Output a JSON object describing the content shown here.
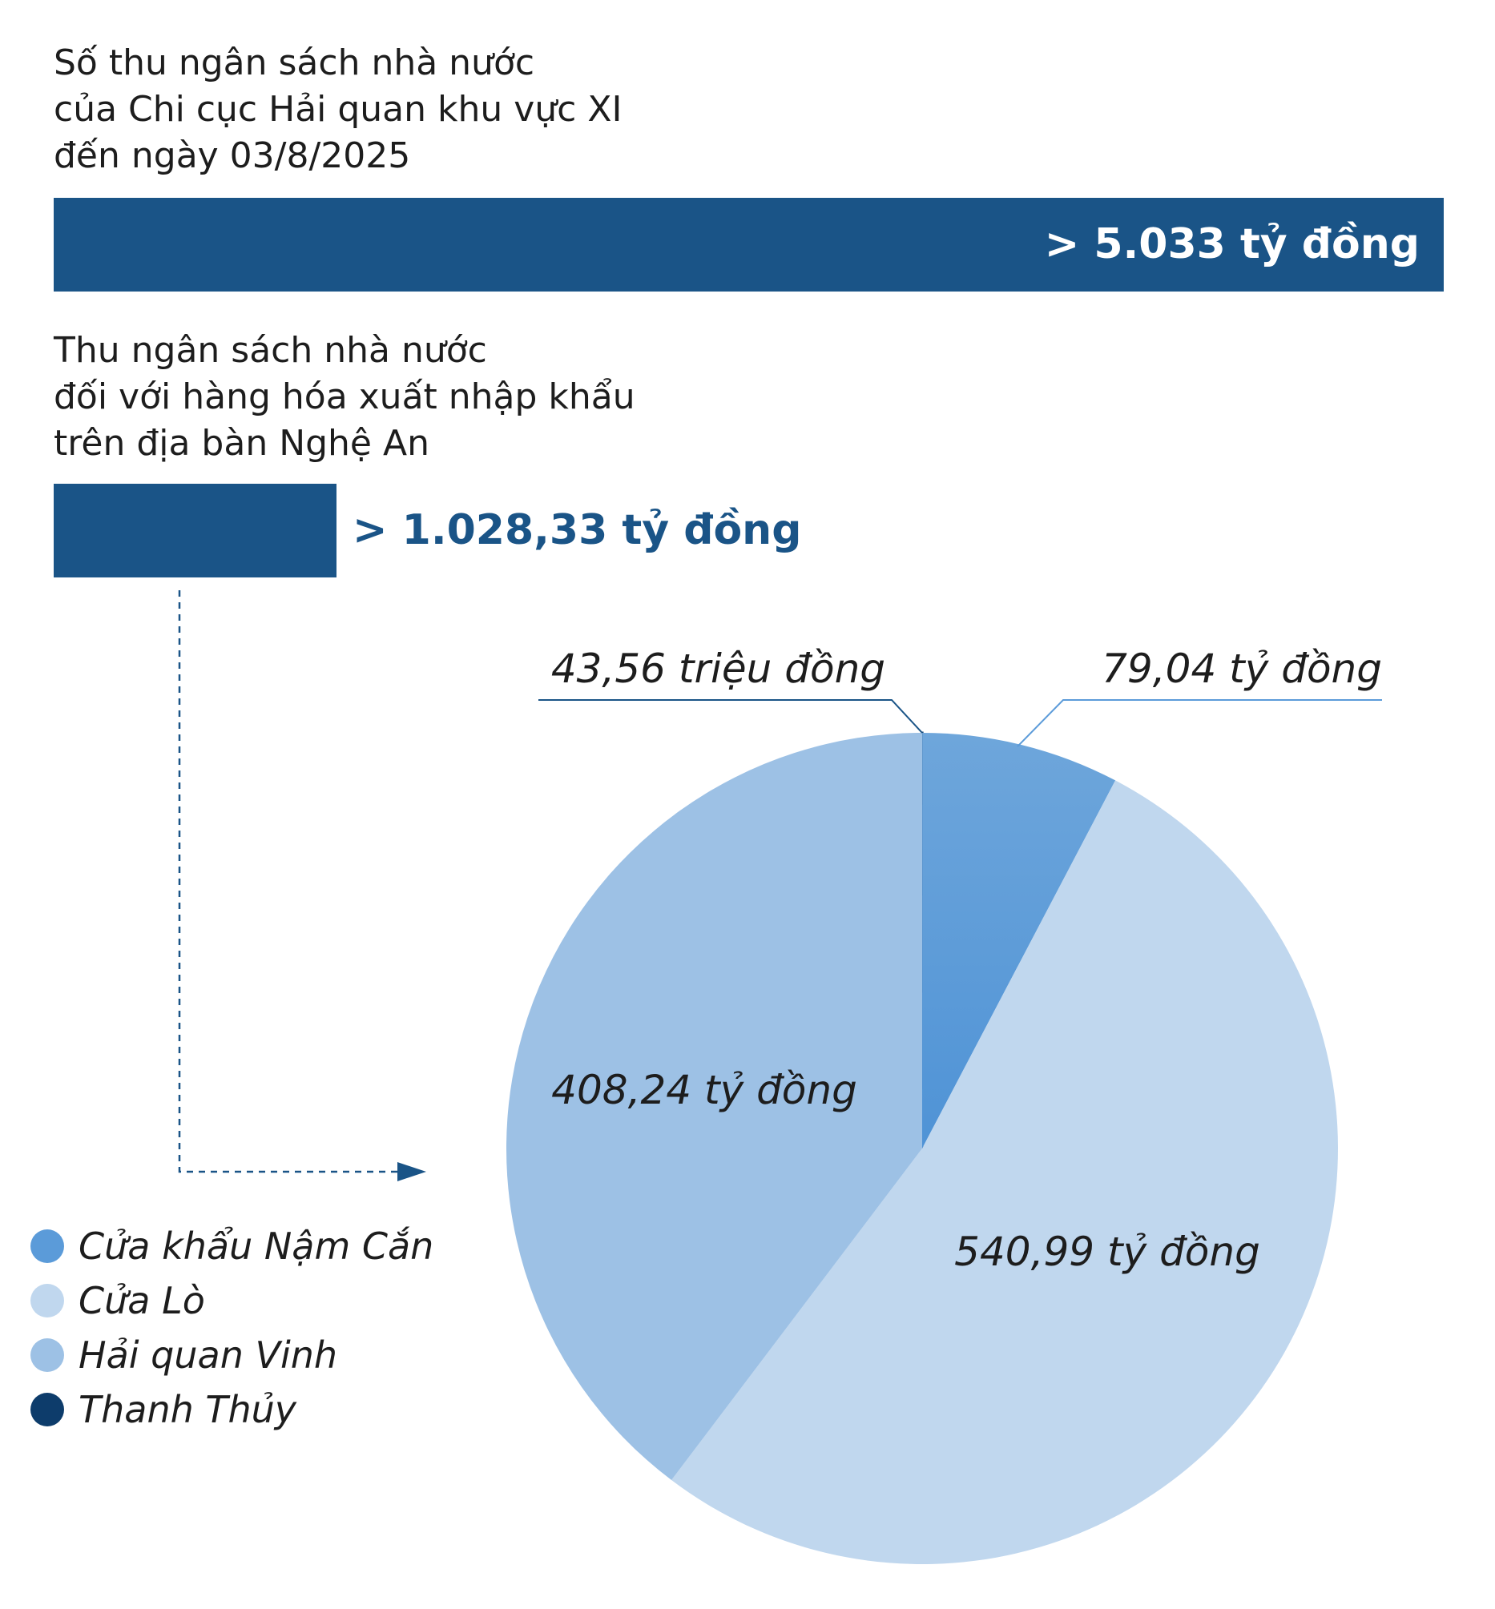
{
  "headings": {
    "total": [
      "Số thu ngân sách nhà nước",
      "của Chi cục Hải quan khu vực XI",
      "đến ngày 03/8/2025"
    ],
    "nghe_an": [
      "Thu ngân sách nhà nước",
      "đối với hàng hóa xuất nhập khẩu",
      "trên địa bàn Nghệ An"
    ]
  },
  "bars": {
    "total_label": "> 5.033 tỷ đồng",
    "nghe_an_label": "> 1.028,33 tỷ đồng",
    "color": "#1a5487"
  },
  "chart_data": {
    "type": "pie",
    "unit": "tỷ đồng",
    "slices": [
      {
        "name": "Thanh Thủy",
        "value": 0.04356,
        "label": "43,56 triệu đồng",
        "color": "#0d3c6b"
      },
      {
        "name": "Cửa khẩu Nậm Cắn",
        "value": 79.04,
        "label": "79,04 tỷ đồng",
        "color": "#5b9bd9"
      },
      {
        "name": "Cửa Lò",
        "value": 540.99,
        "label": "540,99 tỷ đồng",
        "color": "#c0d7ee"
      },
      {
        "name": "Hải quan Vinh",
        "value": 408.24,
        "label": "408,24 tỷ đồng",
        "color": "#9dc1e5"
      }
    ],
    "legend": [
      {
        "name": "Cửa khẩu Nậm Cắn",
        "color": "#5b9bd9"
      },
      {
        "name": "Cửa Lò",
        "color": "#c0d7ee"
      },
      {
        "name": "Hải quan Vinh",
        "color": "#9dc1e5"
      },
      {
        "name": "Thanh Thủy",
        "color": "#0d3c6b"
      }
    ],
    "legend_position": "bottom-left"
  }
}
